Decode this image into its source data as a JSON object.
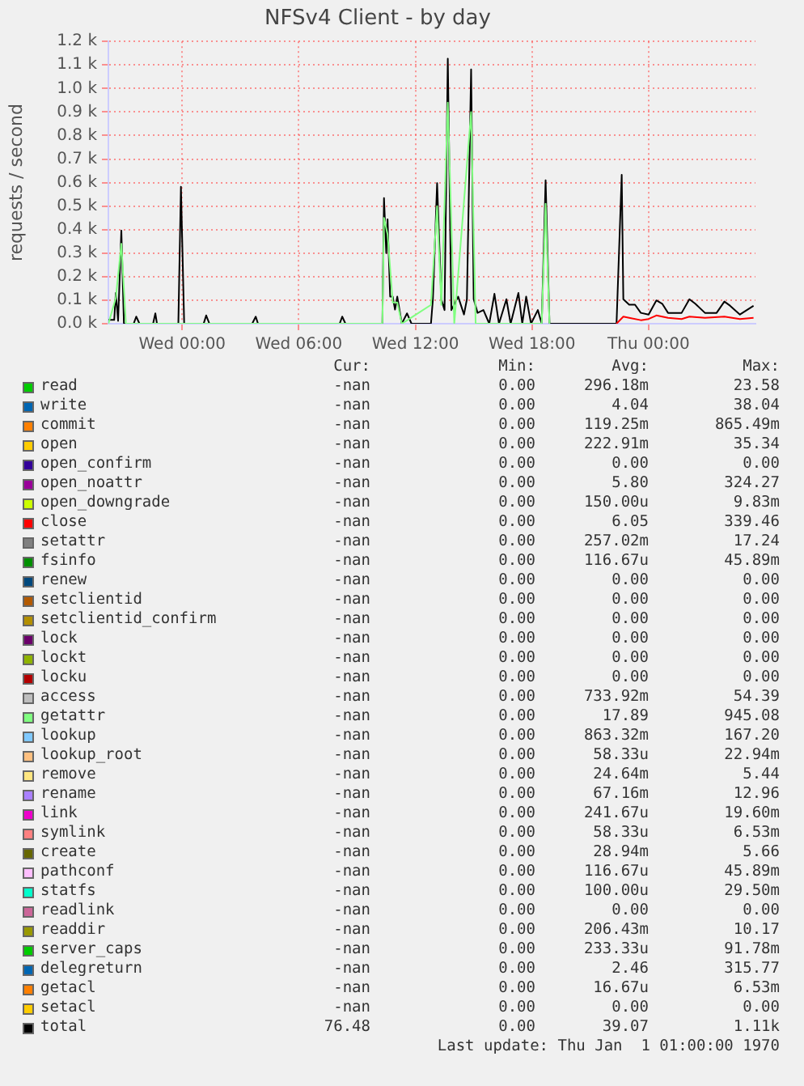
{
  "chart_data": {
    "type": "line",
    "title": "NFSv4 Client - by day",
    "ylabel": "requests / second",
    "xlim": [
      "1970-01-06T20:12",
      "1970-01-08T05:30"
    ],
    "xticks": [
      {
        "value": "1970-01-07T00:00",
        "label": "Wed 00:00"
      },
      {
        "value": "1970-01-07T06:00",
        "label": "Wed 06:00"
      },
      {
        "value": "1970-01-07T12:00",
        "label": "Wed 12:00"
      },
      {
        "value": "1970-01-07T18:00",
        "label": "Wed 18:00"
      },
      {
        "value": "1970-01-08T00:00",
        "label": "Thu 00:00"
      }
    ],
    "ylim": [
      0,
      1200
    ],
    "yticks": [
      {
        "value": 0,
        "label": "0.0 k"
      },
      {
        "value": 100,
        "label": "0.1 k"
      },
      {
        "value": 200,
        "label": "0.2 k"
      },
      {
        "value": 300,
        "label": "0.3 k"
      },
      {
        "value": 400,
        "label": "0.4 k"
      },
      {
        "value": 500,
        "label": "0.5 k"
      },
      {
        "value": 600,
        "label": "0.6 k"
      },
      {
        "value": 700,
        "label": "0.7 k"
      },
      {
        "value": 800,
        "label": "0.8 k"
      },
      {
        "value": 900,
        "label": "0.9 k"
      },
      {
        "value": 1000,
        "label": "1.0 k"
      },
      {
        "value": 1100,
        "label": "1.1 k"
      },
      {
        "value": 1200,
        "label": "1.2 k"
      }
    ],
    "grid": true,
    "legend": "bottom",
    "marker": "none",
    "line_style": "solid",
    "series": [
      {
        "name": "read",
        "color": "#00cc00"
      },
      {
        "name": "write",
        "color": "#0066b3"
      },
      {
        "name": "commit",
        "color": "#ff8000"
      },
      {
        "name": "open",
        "color": "#ffcc00"
      },
      {
        "name": "open_confirm",
        "color": "#330099"
      },
      {
        "name": "open_noattr",
        "color": "#990099"
      },
      {
        "name": "open_downgrade",
        "color": "#ccff00"
      },
      {
        "name": "close",
        "color": "#ff0000",
        "x": [
          "1970-01-07T22:21",
          "1970-01-07T22:42",
          "1970-01-07T23:00",
          "1970-01-07T23:36",
          "1970-01-08T00:00",
          "1970-01-08T00:24",
          "1970-01-08T01:00",
          "1970-01-08T01:42",
          "1970-01-08T02:06",
          "1970-01-08T02:54",
          "1970-01-08T03:54",
          "1970-01-08T04:42",
          "1970-01-08T05:24"
        ],
        "values": [
          0,
          30,
          25,
          15,
          20,
          35,
          25,
          20,
          30,
          25,
          30,
          20,
          25
        ]
      },
      {
        "name": "setattr",
        "color": "#808080"
      },
      {
        "name": "fsinfo",
        "color": "#008f00"
      },
      {
        "name": "renew",
        "color": "#00487d"
      },
      {
        "name": "setclientid",
        "color": "#b35a00"
      },
      {
        "name": "setclientid_confirm",
        "color": "#b38f00"
      },
      {
        "name": "lock",
        "color": "#6b006b"
      },
      {
        "name": "lockt",
        "color": "#8fb300"
      },
      {
        "name": "locku",
        "color": "#b30000"
      },
      {
        "name": "access",
        "color": "#bebebe"
      },
      {
        "name": "getattr",
        "color": "#80ff80",
        "x": [
          "1970-01-06T20:12",
          "1970-01-06T20:35",
          "1970-01-06T20:52",
          "1970-01-06T21:06",
          "1970-01-07T10:18",
          "1970-01-07T10:23",
          "1970-01-07T10:34",
          "1970-01-07T10:50",
          "1970-01-07T11:04",
          "1970-01-07T11:18",
          "1970-01-07T12:48",
          "1970-01-07T13:07",
          "1970-01-07T13:20",
          "1970-01-07T13:40",
          "1970-01-07T14:00",
          "1970-01-07T14:52",
          "1970-01-07T15:06",
          "1970-01-07T18:30",
          "1970-01-07T18:42",
          "1970-01-07T18:54"
        ],
        "values": [
          0,
          110,
          340,
          0,
          0,
          450,
          380,
          90,
          90,
          0,
          80,
          500,
          80,
          940,
          0,
          900,
          0,
          0,
          510,
          0
        ]
      },
      {
        "name": "lookup",
        "color": "#80c9ff"
      },
      {
        "name": "lookup_root",
        "color": "#ffc080"
      },
      {
        "name": "remove",
        "color": "#ffe680"
      },
      {
        "name": "rename",
        "color": "#aa80ff"
      },
      {
        "name": "link",
        "color": "#ee00cc"
      },
      {
        "name": "symlink",
        "color": "#ff8080"
      },
      {
        "name": "create",
        "color": "#666600"
      },
      {
        "name": "pathconf",
        "color": "#ffbfff"
      },
      {
        "name": "statfs",
        "color": "#00ffcc"
      },
      {
        "name": "readlink",
        "color": "#cc6699"
      },
      {
        "name": "readdir",
        "color": "#999900"
      },
      {
        "name": "server_caps",
        "color": "#00cc00"
      },
      {
        "name": "delegreturn",
        "color": "#0066b3"
      },
      {
        "name": "getacl",
        "color": "#ff8000"
      },
      {
        "name": "setacl",
        "color": "#ffcc00"
      },
      {
        "name": "total",
        "color": "#000000",
        "x": [
          "1970-01-06T20:12",
          "1970-01-06T20:30",
          "1970-01-06T20:35",
          "1970-01-06T20:42",
          "1970-01-06T20:52",
          "1970-01-06T21:00",
          "1970-01-06T21:30",
          "1970-01-06T21:38",
          "1970-01-06T21:48",
          "1970-01-06T22:30",
          "1970-01-06T22:37",
          "1970-01-06T22:42",
          "1970-01-06T23:48",
          "1970-01-06T23:56",
          "1970-01-07T00:06",
          "1970-01-07T01:06",
          "1970-01-07T01:14",
          "1970-01-07T01:24",
          "1970-01-07T03:36",
          "1970-01-07T03:47",
          "1970-01-07T03:54",
          "1970-01-07T08:06",
          "1970-01-07T08:14",
          "1970-01-07T08:24",
          "1970-01-07T10:18",
          "1970-01-07T10:23",
          "1970-01-07T10:30",
          "1970-01-07T10:34",
          "1970-01-07T10:42",
          "1970-01-07T10:50",
          "1970-01-07T10:57",
          "1970-01-07T11:04",
          "1970-01-07T11:18",
          "1970-01-07T11:34",
          "1970-01-07T11:48",
          "1970-01-07T12:48",
          "1970-01-07T12:54",
          "1970-01-07T13:07",
          "1970-01-07T13:20",
          "1970-01-07T13:30",
          "1970-01-07T13:40",
          "1970-01-07T13:51",
          "1970-01-07T14:12",
          "1970-01-07T14:30",
          "1970-01-07T14:39",
          "1970-01-07T14:52",
          "1970-01-07T15:00",
          "1970-01-07T15:12",
          "1970-01-07T15:30",
          "1970-01-07T15:48",
          "1970-01-07T16:04",
          "1970-01-07T16:18",
          "1970-01-07T16:41",
          "1970-01-07T16:54",
          "1970-01-07T17:18",
          "1970-01-07T17:30",
          "1970-01-07T17:42",
          "1970-01-07T17:57",
          "1970-01-07T18:18",
          "1970-01-07T18:30",
          "1970-01-07T18:42",
          "1970-01-07T18:54",
          "1970-01-07T22:21",
          "1970-01-07T22:37",
          "1970-01-07T22:42",
          "1970-01-07T23:00",
          "1970-01-07T23:18",
          "1970-01-07T23:36",
          "1970-01-08T00:00",
          "1970-01-08T00:24",
          "1970-01-08T00:42",
          "1970-01-08T01:00",
          "1970-01-08T01:42",
          "1970-01-08T02:06",
          "1970-01-08T02:24",
          "1970-01-08T02:54",
          "1970-01-08T03:30",
          "1970-01-08T03:54",
          "1970-01-08T04:12",
          "1970-01-08T04:42",
          "1970-01-08T05:24"
        ],
        "values": [
          16,
          16,
          131,
          12,
          396,
          0,
          0,
          30,
          0,
          0,
          44,
          0,
          0,
          582,
          0,
          0,
          35,
          0,
          0,
          30,
          0,
          0,
          30,
          0,
          0,
          534,
          300,
          444,
          115,
          115,
          60,
          115,
          0,
          44,
          0,
          0,
          104,
          598,
          104,
          58,
          1127,
          58,
          115,
          39,
          104,
          1081,
          104,
          46,
          58,
          0,
          127,
          0,
          104,
          0,
          131,
          0,
          115,
          0,
          58,
          0,
          610,
          0,
          0,
          633,
          104,
          81,
          81,
          46,
          39,
          99,
          85,
          46,
          46,
          104,
          85,
          46,
          46,
          94,
          76,
          39,
          76
        ]
      }
    ],
    "annotations": [
      "Cur:",
      "Min:",
      "Avg:",
      "Max:",
      "-nan",
      "0.00",
      "296.18m",
      "23.58",
      "-nan",
      "0.00",
      "4.04",
      "38.04",
      "-nan",
      "0.00",
      "119.25m",
      "865.49m",
      "-nan",
      "0.00",
      "222.91m",
      "35.34",
      "-nan",
      "0.00",
      "0.00",
      "0.00",
      "-nan",
      "0.00",
      "5.80",
      "324.27",
      "-nan",
      "0.00",
      "150.00u",
      "9.83m",
      "-nan",
      "0.00",
      "6.05",
      "339.46",
      "-nan",
      "0.00",
      "257.02m",
      "17.24",
      "-nan",
      "0.00",
      "116.67u",
      "45.89m",
      "-nan",
      "0.00",
      "0.00",
      "0.00",
      "-nan",
      "0.00",
      "0.00",
      "0.00",
      "-nan",
      "0.00",
      "0.00",
      "0.00",
      "-nan",
      "0.00",
      "0.00",
      "0.00",
      "-nan",
      "0.00",
      "0.00",
      "0.00",
      "-nan",
      "0.00",
      "0.00",
      "0.00",
      "-nan",
      "0.00",
      "733.92m",
      "54.39",
      "-nan",
      "0.00",
      "17.89",
      "945.08",
      "-nan",
      "0.00",
      "863.32m",
      "167.20",
      "-nan",
      "0.00",
      "58.33u",
      "22.94m",
      "-nan",
      "0.00",
      "24.64m",
      "5.44",
      "-nan",
      "0.00",
      "67.16m",
      "12.96",
      "-nan",
      "0.00",
      "241.67u",
      "19.60m",
      "-nan",
      "0.00",
      "58.33u",
      "6.53m",
      "-nan",
      "0.00",
      "28.94m",
      "5.66",
      "-nan",
      "0.00",
      "116.67u",
      "45.89m",
      "-nan",
      "0.00",
      "100.00u",
      "29.50m",
      "-nan",
      "0.00",
      "0.00",
      "0.00",
      "-nan",
      "0.00",
      "206.43m",
      "10.17",
      "-nan",
      "0.00",
      "233.33u",
      "91.78m",
      "-nan",
      "0.00",
      "2.46",
      "315.77",
      "-nan",
      "0.00",
      "16.67u",
      "6.53m",
      "-nan",
      "0.00",
      "0.00",
      "0.00",
      "76.48",
      "0.00",
      "39.07",
      "1.11k",
      "Last update: Thu Jan  1 01:00:00 1970"
    ]
  }
}
